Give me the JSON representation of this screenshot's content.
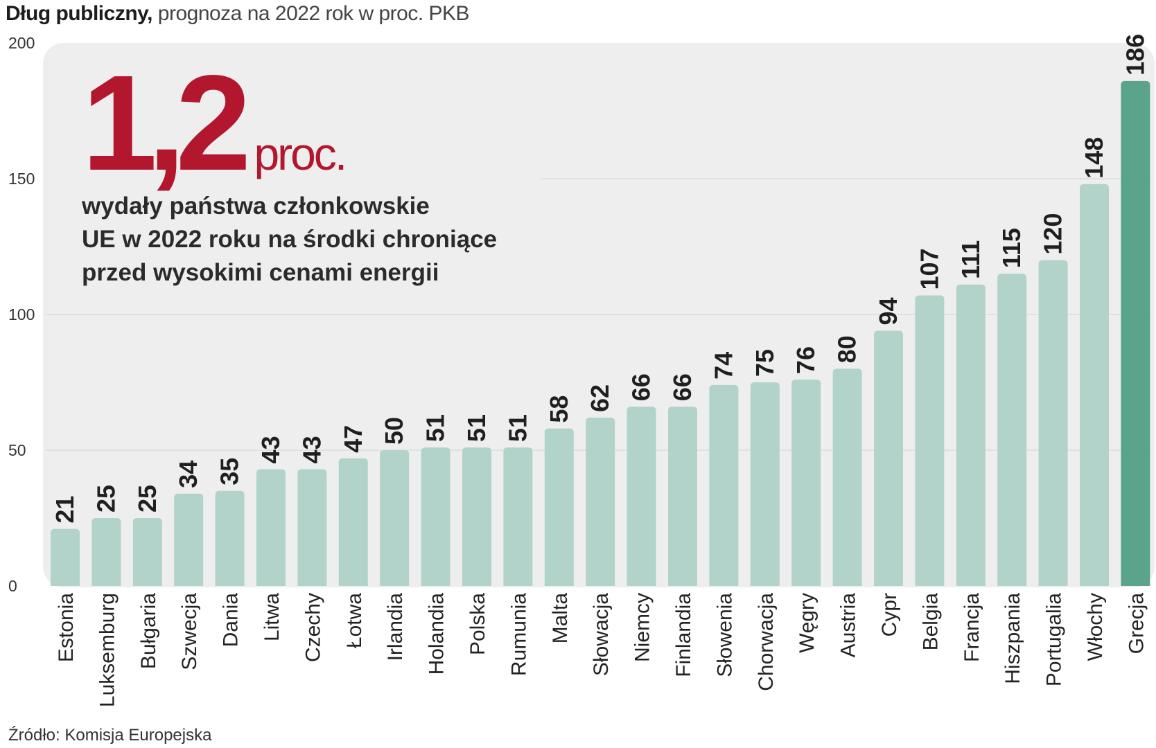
{
  "header": {
    "title_bold": "Dług publiczny,",
    "title_rest": " prognoza na 2022 rok w proc. PKB"
  },
  "callout": {
    "number": "1,2",
    "unit": "proc.",
    "lines": [
      "wydały państwa członkowskie",
      "UE w 2022 roku na środki chroniące",
      "przed wysokimi cenami energii"
    ]
  },
  "footer": {
    "source": "Źródło: Komisja Europejska"
  },
  "colors": {
    "bar": "#b2d3ca",
    "highlight_bar": "#5aa48c",
    "accent": "#b3172e",
    "panel": "#eeeeee"
  },
  "chart_data": {
    "type": "bar",
    "title": "Dług publiczny, prognoza na 2022 rok w proc. PKB",
    "xlabel": "",
    "ylabel": "",
    "ylim": [
      0,
      200
    ],
    "yticks": [
      0,
      50,
      100,
      150,
      200
    ],
    "grid": true,
    "highlight": "Grecja",
    "categories": [
      "Estonia",
      "Luksemburg",
      "Bułgaria",
      "Szwecja",
      "Dania",
      "Litwa",
      "Czechy",
      "Łotwa",
      "Irlandia",
      "Holandia",
      "Polska",
      "Rumunia",
      "Malta",
      "Słowacja",
      "Niemcy",
      "Finlandia",
      "Słowenia",
      "Chorwacja",
      "Węgry",
      "Austria",
      "Cypr",
      "Belgia",
      "Francja",
      "Hiszpania",
      "Portugalia",
      "Włochy",
      "Grecja"
    ],
    "values": [
      21,
      25,
      25,
      34,
      35,
      43,
      43,
      47,
      50,
      51,
      51,
      51,
      58,
      62,
      66,
      66,
      74,
      75,
      76,
      80,
      94,
      107,
      111,
      115,
      120,
      148,
      186
    ]
  }
}
